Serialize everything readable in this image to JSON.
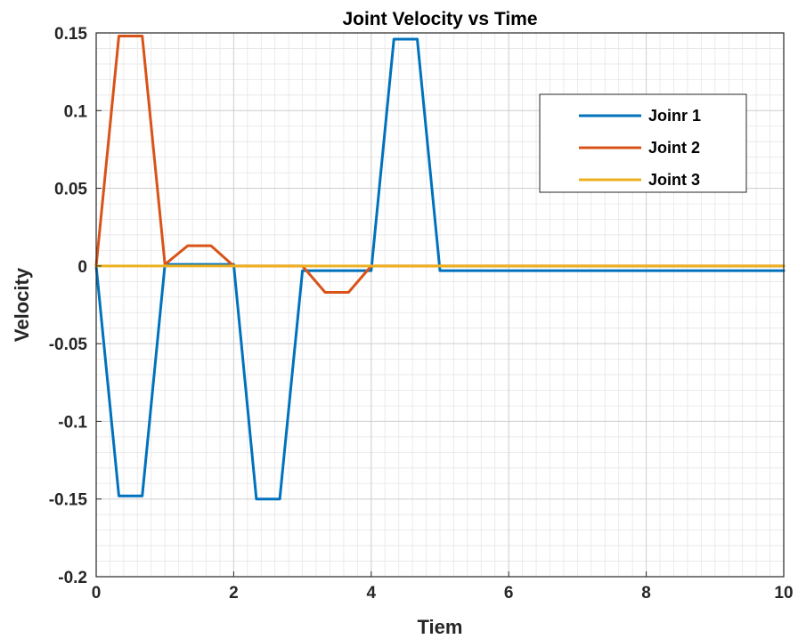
{
  "chart_data": {
    "type": "line",
    "title": "Joint Velocity vs Time",
    "xlabel": "Tiem",
    "ylabel": "Velocity",
    "xlim": [
      0,
      10
    ],
    "ylim": [
      -0.2,
      0.15
    ],
    "x_ticks": [
      0,
      2,
      4,
      6,
      8,
      10
    ],
    "x_tick_labels": [
      "0",
      "2",
      "4",
      "6",
      "8",
      "10"
    ],
    "y_ticks": [
      0.15,
      0.1,
      0.05,
      0,
      -0.05,
      -0.1,
      -0.15,
      -0.2
    ],
    "y_tick_labels": [
      "0.15",
      "0.1",
      "0.05",
      "0",
      "-0.05",
      "-0.1",
      "-0.15",
      "-0.2"
    ],
    "grid": true,
    "minor_grid": true,
    "legend_position": "top-right",
    "series": [
      {
        "name": "Joinr 1",
        "color": "#0072BD",
        "x": [
          0,
          0.33,
          0.67,
          1,
          2,
          2.33,
          2.67,
          3,
          4,
          4.33,
          4.67,
          5,
          10
        ],
        "y": [
          0,
          -0.148,
          -0.148,
          0.001,
          0.001,
          -0.15,
          -0.15,
          -0.003,
          -0.003,
          0.146,
          0.146,
          -0.003,
          -0.003
        ]
      },
      {
        "name": "Joint 2",
        "color": "#D95319",
        "x": [
          0,
          0.33,
          0.67,
          1,
          1.33,
          1.67,
          2,
          3,
          3.33,
          3.67,
          4,
          10
        ],
        "y": [
          0,
          0.148,
          0.148,
          0.001,
          0.013,
          0.013,
          0,
          0,
          -0.017,
          -0.017,
          0,
          0
        ]
      },
      {
        "name": "Joint 3",
        "color": "#EDB120",
        "x": [
          0,
          10
        ],
        "y": [
          0,
          0
        ]
      }
    ]
  }
}
